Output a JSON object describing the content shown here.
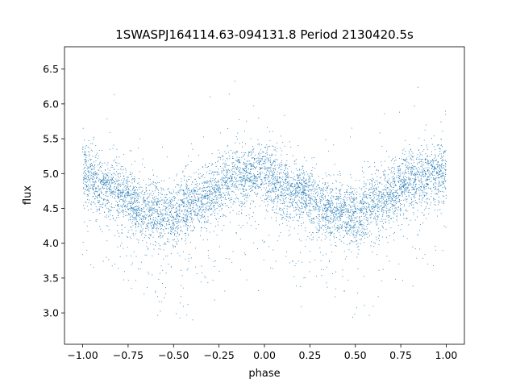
{
  "chart_data": {
    "type": "scatter",
    "title": "1SWASPJ164114.63-094131.8 Period 2130420.5s",
    "xlabel": "phase",
    "ylabel": "flux",
    "xlim": [
      -1.1,
      1.1
    ],
    "ylim": [
      2.55,
      6.82
    ],
    "xticks": [
      -1.0,
      -0.75,
      -0.5,
      -0.25,
      0.0,
      0.25,
      0.5,
      0.75,
      1.0
    ],
    "xtick_labels": [
      "−1.00",
      "−0.75",
      "−0.50",
      "−0.25",
      "0.00",
      "0.25",
      "0.50",
      "0.75",
      "1.00"
    ],
    "yticks": [
      3.0,
      3.5,
      4.0,
      4.5,
      5.0,
      5.5,
      6.0,
      6.5
    ],
    "ytick_labels": [
      "3.0",
      "3.5",
      "4.0",
      "4.5",
      "5.0",
      "5.5",
      "6.0",
      "6.5"
    ],
    "grid": false,
    "marker_color": "#1f77b4",
    "phase_range": [
      -1.0,
      1.0
    ],
    "profile_phase": [
      0.0,
      0.1,
      0.2,
      0.25,
      0.3,
      0.4,
      0.5,
      0.6,
      0.7,
      0.75,
      0.8,
      0.9,
      1.0
    ],
    "profile_flux": [
      5.05,
      4.8,
      4.75,
      4.65,
      4.5,
      4.45,
      4.4,
      4.55,
      4.7,
      4.8,
      4.9,
      4.95,
      5.05
    ],
    "scatter_sigma": 0.3,
    "n_points": 6500
  }
}
